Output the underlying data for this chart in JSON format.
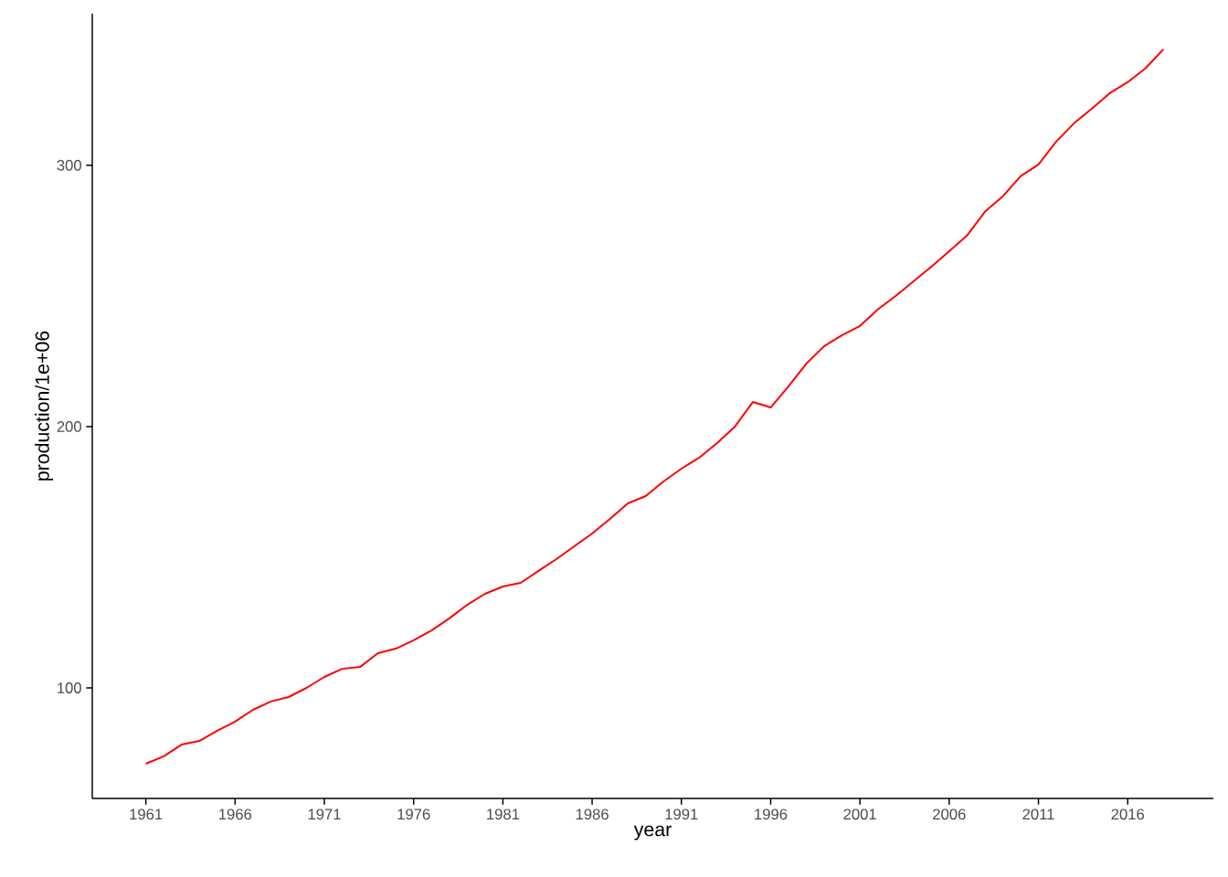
{
  "chart_data": {
    "type": "line",
    "xlabel": "year",
    "ylabel": "production/1e+06",
    "x": [
      1961,
      1962,
      1963,
      1964,
      1965,
      1966,
      1967,
      1968,
      1969,
      1970,
      1971,
      1972,
      1973,
      1974,
      1975,
      1976,
      1977,
      1978,
      1979,
      1980,
      1981,
      1982,
      1983,
      1984,
      1985,
      1986,
      1987,
      1988,
      1989,
      1990,
      1991,
      1992,
      1993,
      1994,
      1995,
      1996,
      1997,
      1998,
      1999,
      2000,
      2001,
      2002,
      2003,
      2004,
      2005,
      2006,
      2007,
      2008,
      2009,
      2010,
      2011,
      2012,
      2013,
      2014,
      2015,
      2016,
      2017,
      2018
    ],
    "series": [
      {
        "color": "#ff0000",
        "values": [
          71.0,
          73.8,
          78.3,
          79.7,
          83.6,
          87.1,
          91.6,
          94.8,
          96.5,
          100.0,
          104.2,
          107.3,
          108.0,
          113.3,
          115.0,
          118.2,
          122.0,
          126.6,
          131.8,
          136.0,
          138.8,
          140.2,
          144.8,
          149.3,
          154.2,
          159.1,
          164.7,
          170.6,
          173.4,
          179.0,
          183.9,
          188.1,
          193.7,
          200.0,
          209.4,
          207.3,
          215.4,
          224.1,
          230.8,
          235.0,
          238.5,
          244.8,
          250.0,
          255.6,
          261.2,
          267.1,
          273.1,
          282.2,
          288.1,
          295.8,
          300.3,
          309.1,
          316.1,
          321.7,
          327.6,
          331.8,
          337.1,
          344.4
        ]
      }
    ],
    "xlim": [
      1958.0,
      2020.8
    ],
    "ylim": [
      57.7,
      358
    ],
    "xticks": [
      1961,
      1966,
      1971,
      1976,
      1981,
      1986,
      1991,
      1996,
      2001,
      2006,
      2011,
      2016
    ],
    "yticks": [
      100,
      200,
      300
    ],
    "grid": false
  }
}
